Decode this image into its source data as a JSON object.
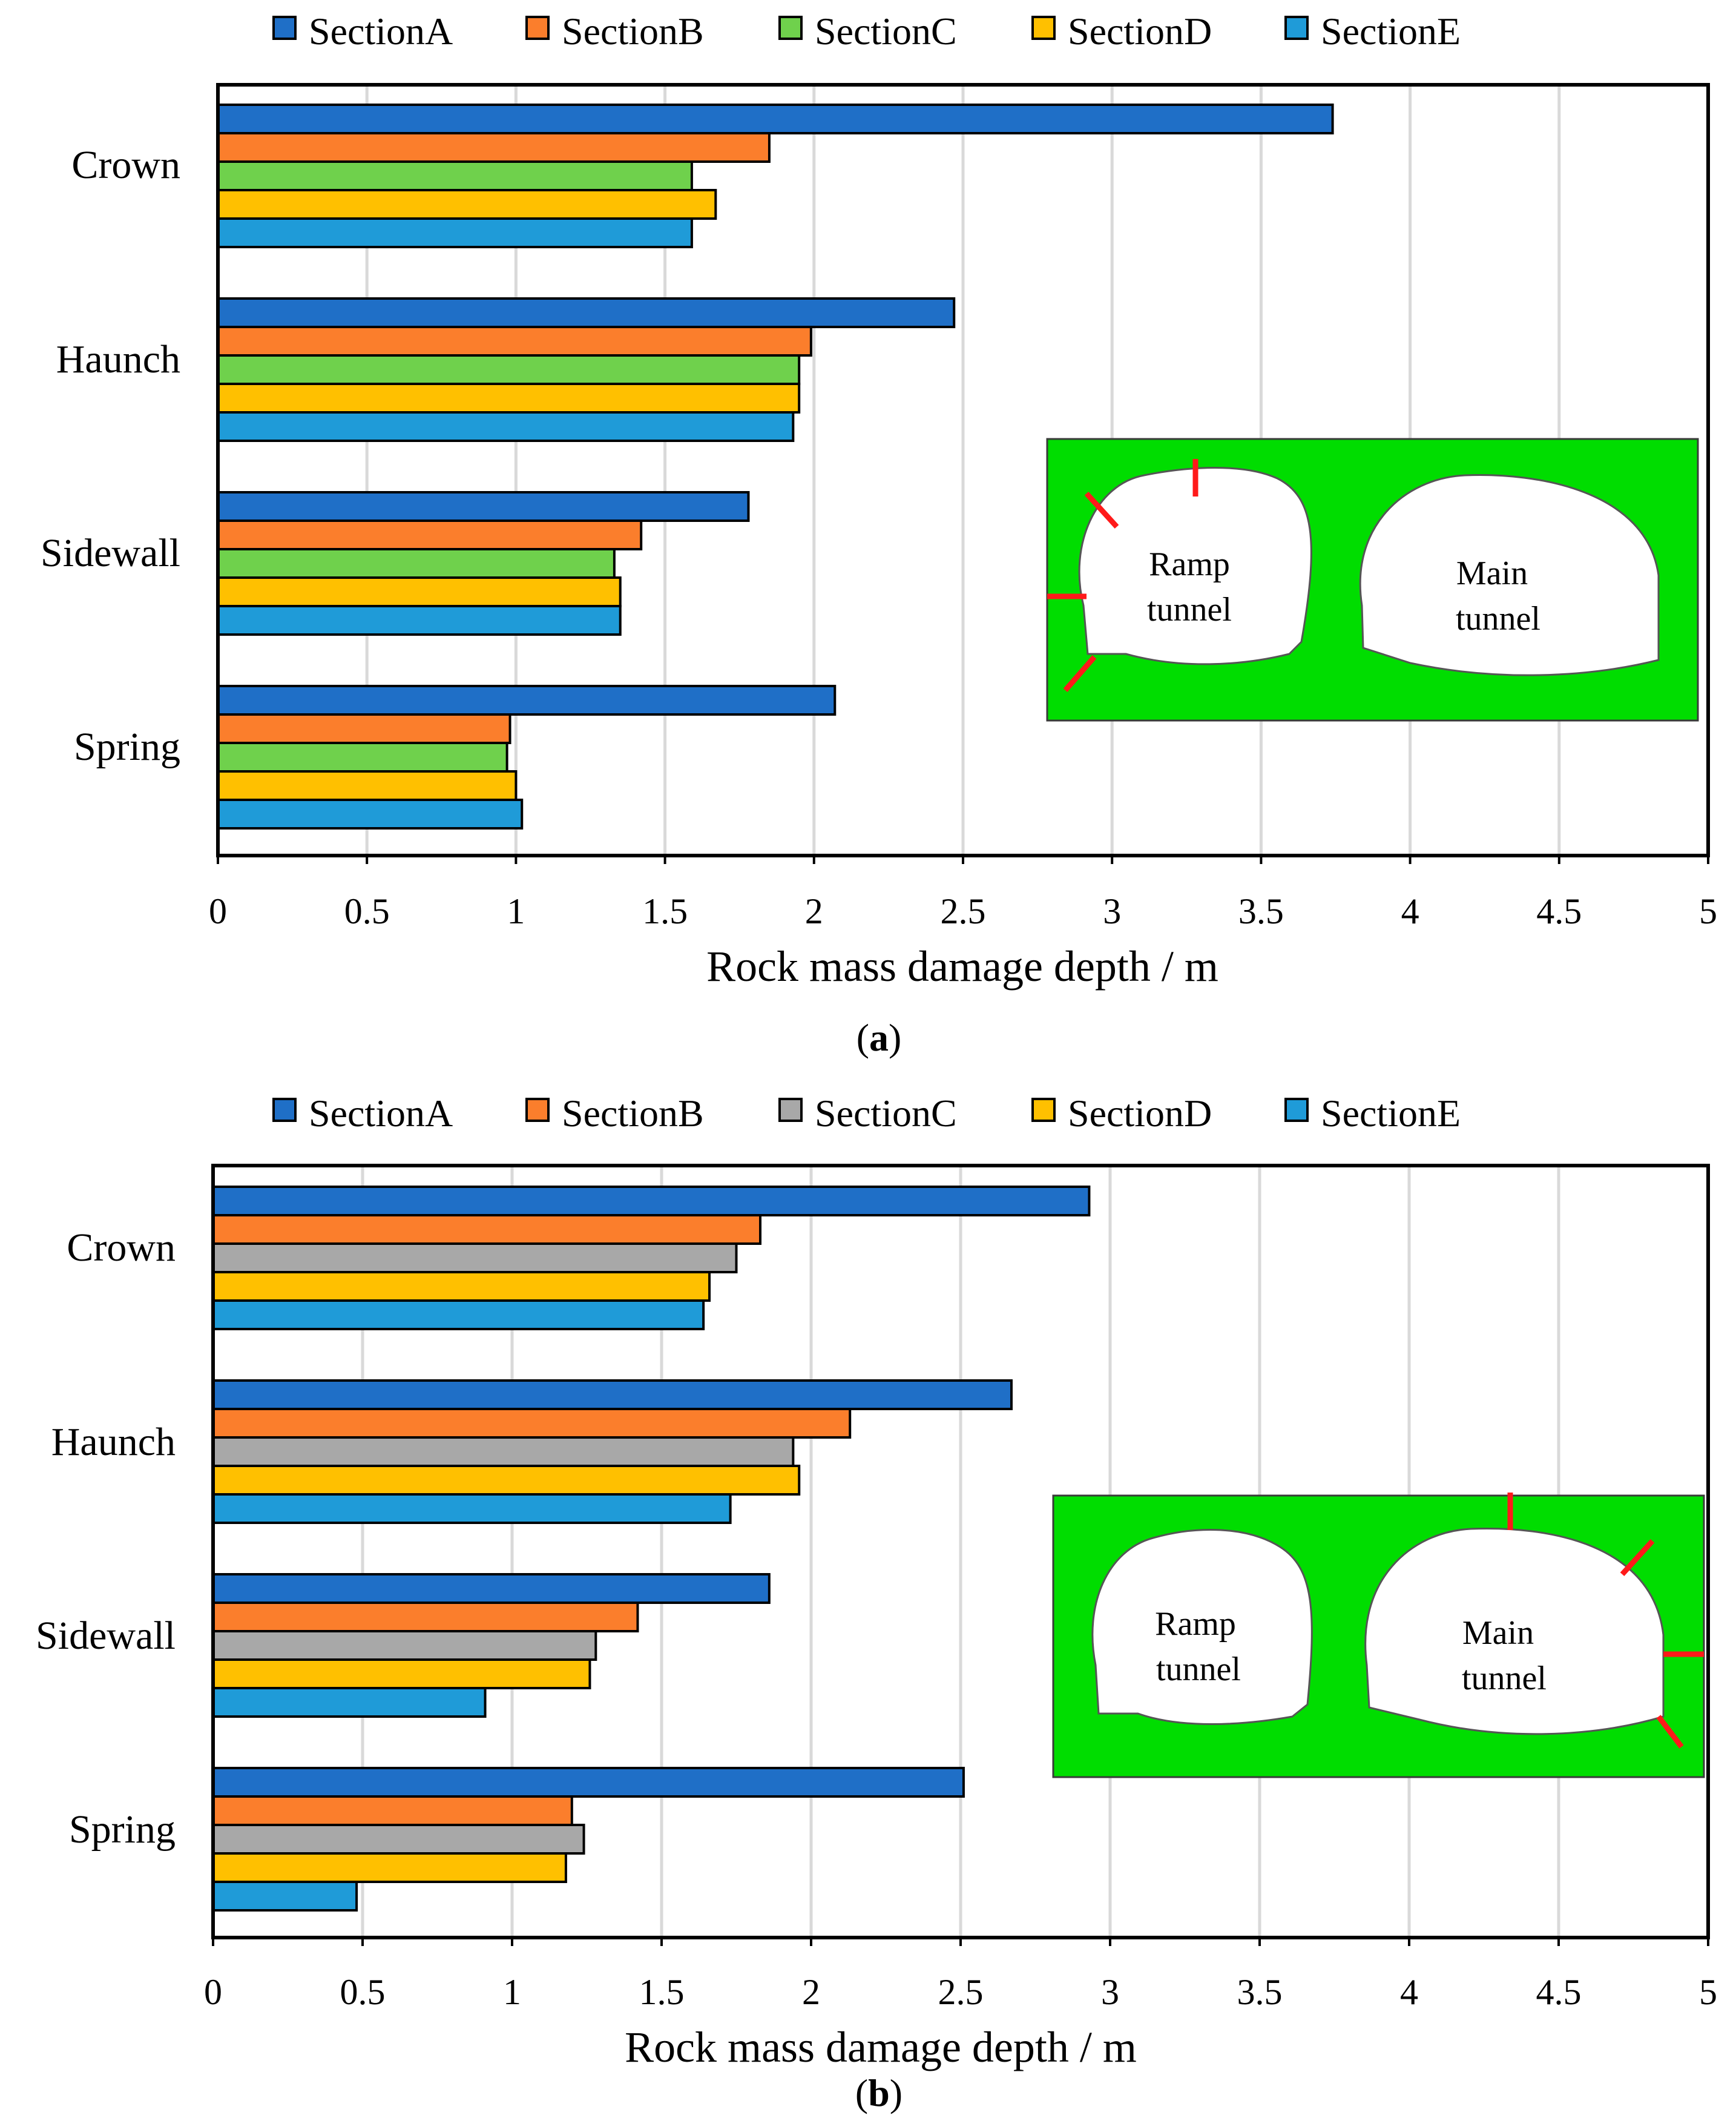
{
  "colors": {
    "SectionA": "#1f6fc7",
    "SectionB": "#fb7e2c",
    "SectionC_a": "#6fd14c",
    "SectionC_b": "#a8a8a8",
    "SectionD": "#ffc000",
    "SectionE": "#1f9bd8",
    "grid": "#d9d9d9",
    "inset_rock": "#00dd00",
    "damage_marker": "#ff1a1a"
  },
  "chart_data": [
    {
      "type": "bar",
      "orientation": "horizontal",
      "panel_label": "a",
      "title": "",
      "xlabel": "Rock mass damage depth / m",
      "ylabel": "",
      "xlim": [
        0,
        5
      ],
      "xticks": [
        "0",
        "0.5",
        "1",
        "1.5",
        "2",
        "2.5",
        "3",
        "3.5",
        "4",
        "4.5",
        "5"
      ],
      "grid": true,
      "legend_position": "top",
      "categories": [
        "Crown",
        "Haunch",
        "Sidewall",
        "Spring"
      ],
      "series": [
        {
          "name": "SectionA",
          "color_key": "SectionA",
          "values": [
            3.74,
            2.47,
            1.78,
            2.07
          ]
        },
        {
          "name": "SectionB",
          "color_key": "SectionB",
          "values": [
            1.85,
            1.99,
            1.42,
            0.98
          ]
        },
        {
          "name": "SectionC",
          "color_key": "SectionC_a",
          "values": [
            1.59,
            1.95,
            1.33,
            0.97
          ]
        },
        {
          "name": "SectionD",
          "color_key": "SectionD",
          "values": [
            1.67,
            1.95,
            1.35,
            1.0
          ]
        },
        {
          "name": "SectionE",
          "color_key": "SectionE",
          "values": [
            1.59,
            1.93,
            1.35,
            1.02
          ]
        }
      ],
      "inset": {
        "ramp_label": [
          "Ramp",
          "tunnel"
        ],
        "main_label": [
          "Main",
          "tunnel"
        ],
        "damaged_tunnel": "ramp"
      }
    },
    {
      "type": "bar",
      "orientation": "horizontal",
      "panel_label": "b",
      "title": "",
      "xlabel": "Rock mass damage depth / m",
      "ylabel": "",
      "xlim": [
        0,
        5
      ],
      "xticks": [
        "0",
        "0.5",
        "1",
        "1.5",
        "2",
        "2.5",
        "3",
        "3.5",
        "4",
        "4.5",
        "5"
      ],
      "grid": true,
      "legend_position": "top",
      "categories": [
        "Crown",
        "Haunch",
        "Sidewall",
        "Spring"
      ],
      "series": [
        {
          "name": "SectionA",
          "color_key": "SectionA",
          "values": [
            2.93,
            2.67,
            1.86,
            2.51
          ]
        },
        {
          "name": "SectionB",
          "color_key": "SectionB",
          "values": [
            1.83,
            2.13,
            1.42,
            1.2
          ]
        },
        {
          "name": "SectionC",
          "color_key": "SectionC_b",
          "values": [
            1.75,
            1.94,
            1.28,
            1.24
          ]
        },
        {
          "name": "SectionD",
          "color_key": "SectionD",
          "values": [
            1.66,
            1.96,
            1.26,
            1.18
          ]
        },
        {
          "name": "SectionE",
          "color_key": "SectionE",
          "values": [
            1.64,
            1.73,
            0.91,
            0.48
          ]
        }
      ],
      "inset": {
        "ramp_label": [
          "Ramp",
          "tunnel"
        ],
        "main_label": [
          "Main",
          "tunnel"
        ],
        "damaged_tunnel": "main"
      }
    }
  ]
}
